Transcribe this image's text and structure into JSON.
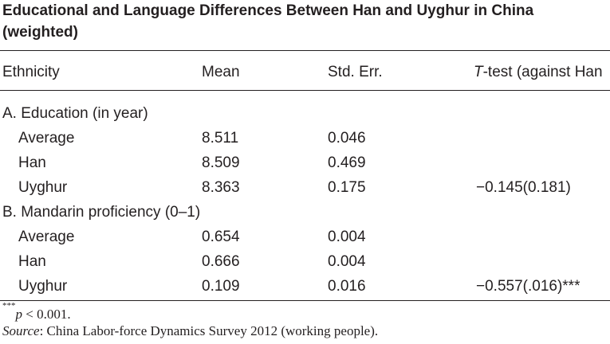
{
  "title": "Educational and Language Differences Between Han and Uyghur in China (weighted)",
  "columns": {
    "ethnicity": "Ethnicity",
    "mean": "Mean",
    "std_err": "Std. Err.",
    "ttest_t": "T",
    "ttest_rest": "-test (against Han"
  },
  "sections": [
    {
      "heading": "A. Education (in year)",
      "rows": [
        {
          "label": "Average",
          "mean": "8.511",
          "se": "0.046",
          "t": ""
        },
        {
          "label": "Han",
          "mean": "8.509",
          "se": "0.469",
          "t": ""
        },
        {
          "label": "Uyghur",
          "mean": "8.363",
          "se": "0.175",
          "t": "−0.145(0.181)"
        }
      ]
    },
    {
      "heading": "B. Mandarin proficiency (0–1)",
      "rows": [
        {
          "label": "Average",
          "mean": "0.654",
          "se": "0.004",
          "t": ""
        },
        {
          "label": "Han",
          "mean": "0.666",
          "se": "0.004",
          "t": ""
        },
        {
          "label": "Uyghur",
          "mean": "0.109",
          "se": "0.016",
          "t": "−0.557(.016)***"
        }
      ]
    }
  ],
  "notes": {
    "sig_stars": "***",
    "sig_p": "p",
    "sig_rest": " < 0.001.",
    "source_label": "Source",
    "source_text": ": China Labor-force Dynamics Survey 2012 (working people)."
  }
}
